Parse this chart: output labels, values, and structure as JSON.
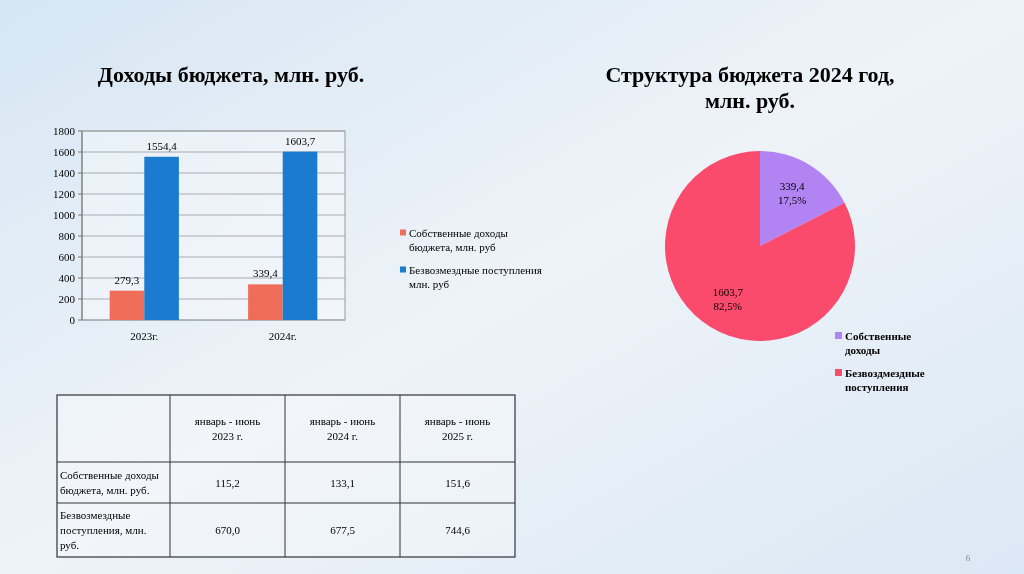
{
  "chart_data": [
    {
      "type": "bar",
      "title": "Доходы бюджета, млн. руб.",
      "categories": [
        "2023г.",
        "2024г."
      ],
      "series": [
        {
          "name": "Собственные доходы бюджета, млн. руб",
          "color": "#ee6e5a",
          "values": [
            279.3,
            339.4
          ],
          "value_labels": [
            "279,3",
            "339,4"
          ]
        },
        {
          "name": "Безвозмездные поступления млн. руб",
          "color": "#1b7ccf",
          "values": [
            1554.4,
            1603.7
          ],
          "value_labels": [
            "1554,4",
            "1603,7"
          ]
        }
      ],
      "ylim": [
        0,
        1800
      ],
      "yticks": [
        0,
        200,
        400,
        600,
        800,
        1000,
        1200,
        1400,
        1600,
        1800
      ],
      "grid": "y",
      "legend": "right"
    },
    {
      "type": "pie",
      "title": "Структура бюджета 2024 год, млн. руб.",
      "categories": [
        "Собственные доходы",
        "Безвоздмездные поступления"
      ],
      "values": [
        339.4,
        1603.7
      ],
      "colors": [
        "#b283f3",
        "#fb4b6d"
      ],
      "value_labels": [
        "339,4\n17,5%",
        "1603,7\n82,5%"
      ],
      "legend": "bottom right"
    },
    {
      "type": "other",
      "categories": [
        "январь - июнь 2023 г.",
        "январь - июнь 2024 г.",
        "январь - июнь 2025 г."
      ],
      "series": [
        {
          "name": "Собственные доходы бюджета, млн. руб.",
          "values": [
            115.2,
            133.1,
            151.6
          ],
          "value_labels": [
            "115,2",
            "133,1",
            "151,6"
          ]
        },
        {
          "name": "Безвозмездные поступления, млн. руб.",
          "values": [
            670.0,
            677.5,
            744.6
          ],
          "value_labels": [
            "670,0",
            "677,5",
            "744,6"
          ]
        }
      ],
      "annotations": [
        "6"
      ]
    }
  ]
}
